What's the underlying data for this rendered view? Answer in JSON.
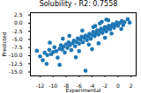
{
  "chart_data": {
    "type": "scatter",
    "title": "Solubility - R2: 0.7558",
    "x_label": "Experimental",
    "y_label": "Predicted",
    "color": "#1f77b4",
    "marker": "circle",
    "x": [
      -12.0,
      -11.6,
      -11.3,
      -10.9,
      -10.6,
      -10.3,
      -10.0,
      -9.8,
      -9.5,
      -9.3,
      -9.0,
      -8.8,
      -8.6,
      -8.4,
      -8.2,
      -8.0,
      -7.8,
      -7.6,
      -7.4,
      -7.2,
      -7.0,
      -6.8,
      -6.6,
      -6.4,
      -6.2,
      -6.0,
      -5.8,
      -5.6,
      -5.4,
      -5.2,
      -5.0,
      -4.8,
      -4.6,
      -4.4,
      -4.2,
      -4.0,
      -3.8,
      -3.6,
      -3.4,
      -3.2,
      -3.0,
      -2.8,
      -2.6,
      -2.4,
      -2.2,
      -2.0,
      -1.8,
      -1.6,
      -1.4,
      -1.2,
      -1.0,
      -0.8,
      -0.6,
      -0.4,
      -0.2,
      0.0,
      0.3,
      0.6,
      1.0,
      1.5,
      -9.0,
      -5.0,
      -6.5,
      -4.0,
      -3.0,
      -2.0,
      -1.0,
      -7.5,
      -5.5,
      -3.5,
      -2.5,
      -1.5,
      0.5,
      -8.5,
      -10.5,
      -11.0,
      -6.0,
      -4.5,
      -3.8,
      -2.8,
      -1.8,
      0.8,
      1.8,
      -12.5
    ],
    "y": [
      -10.2,
      -11.4,
      -9.1,
      -9.8,
      -8.2,
      -9.5,
      -8.9,
      -7.4,
      -8.6,
      -10.6,
      -7.9,
      -6.8,
      -8.1,
      -7.2,
      -9.0,
      -6.5,
      -7.6,
      -5.9,
      -6.8,
      -8.3,
      -6.2,
      -5.4,
      -7.1,
      -5.8,
      -4.7,
      -6.3,
      -5.1,
      -4.2,
      -5.9,
      -4.6,
      -3.8,
      -5.2,
      -4.1,
      -3.3,
      -4.8,
      -3.6,
      -2.7,
      -4.0,
      -3.1,
      -2.2,
      -3.5,
      -2.4,
      -1.7,
      -3.0,
      -2.0,
      -1.2,
      -2.5,
      -1.5,
      -0.8,
      -1.9,
      -1.0,
      -0.3,
      -1.4,
      -0.5,
      0.2,
      -0.8,
      0.1,
      0.6,
      0.3,
      1.2,
      -12.8,
      -14.6,
      -10.5,
      -8.0,
      -6.2,
      -4.5,
      -3.2,
      -3.9,
      -2.3,
      -0.9,
      0.4,
      0.9,
      -1.8,
      -4.8,
      -6.0,
      -12.5,
      -8.6,
      -6.6,
      -1.2,
      -0.1,
      1.1,
      -0.6,
      0.2,
      -8.5
    ],
    "xlim": [
      -13.5,
      2.8
    ],
    "ylim": [
      -16.2,
      3.2
    ],
    "xticks": [
      -12,
      -10,
      -8,
      -6,
      -4,
      -2,
      0,
      2
    ],
    "yticks": [
      2.5,
      {
        "value": 0,
        "label": "0.0"
      },
      -2.5,
      {
        "value": -5,
        "label": "-5.0"
      },
      -7.5,
      {
        "value": -10,
        "label": "-10.0"
      },
      -12.5,
      {
        "value": -15,
        "label": "-15.0"
      }
    ]
  }
}
